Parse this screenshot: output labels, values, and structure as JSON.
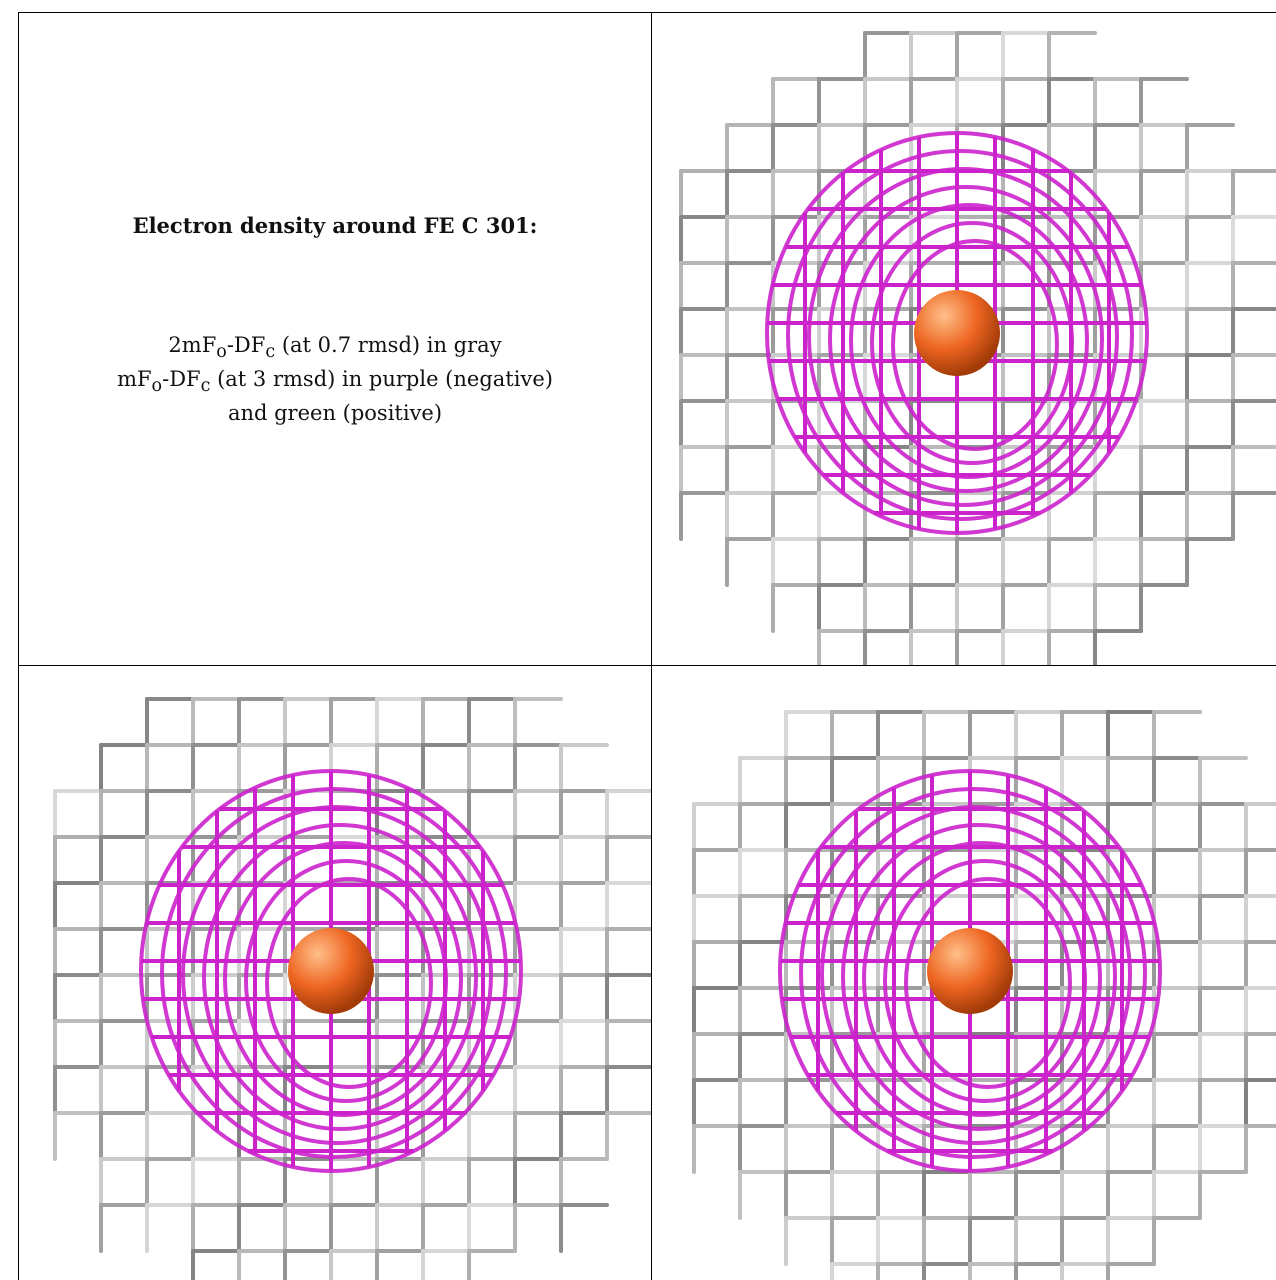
{
  "caption": {
    "title": "Electron density around FE C 301:",
    "line1": "2mFₒ-DFᴄ (at 0.7 rmsd) in gray",
    "line2": "mFₒ-DFᴄ (at 3 rmsd) in purple (negative)",
    "line3": "and green (positive)"
  },
  "colors": {
    "map_2fofc": "#9a9a9a",
    "map_fofc_negative": "#cc22cc",
    "map_fofc_positive": "#22aa22",
    "iron_atom": "#ee6622"
  },
  "views": [
    {
      "name": "view-1",
      "atom_label": "FE C 301"
    },
    {
      "name": "view-2",
      "atom_label": "FE C 301"
    },
    {
      "name": "view-3",
      "atom_label": "FE C 301"
    }
  ]
}
